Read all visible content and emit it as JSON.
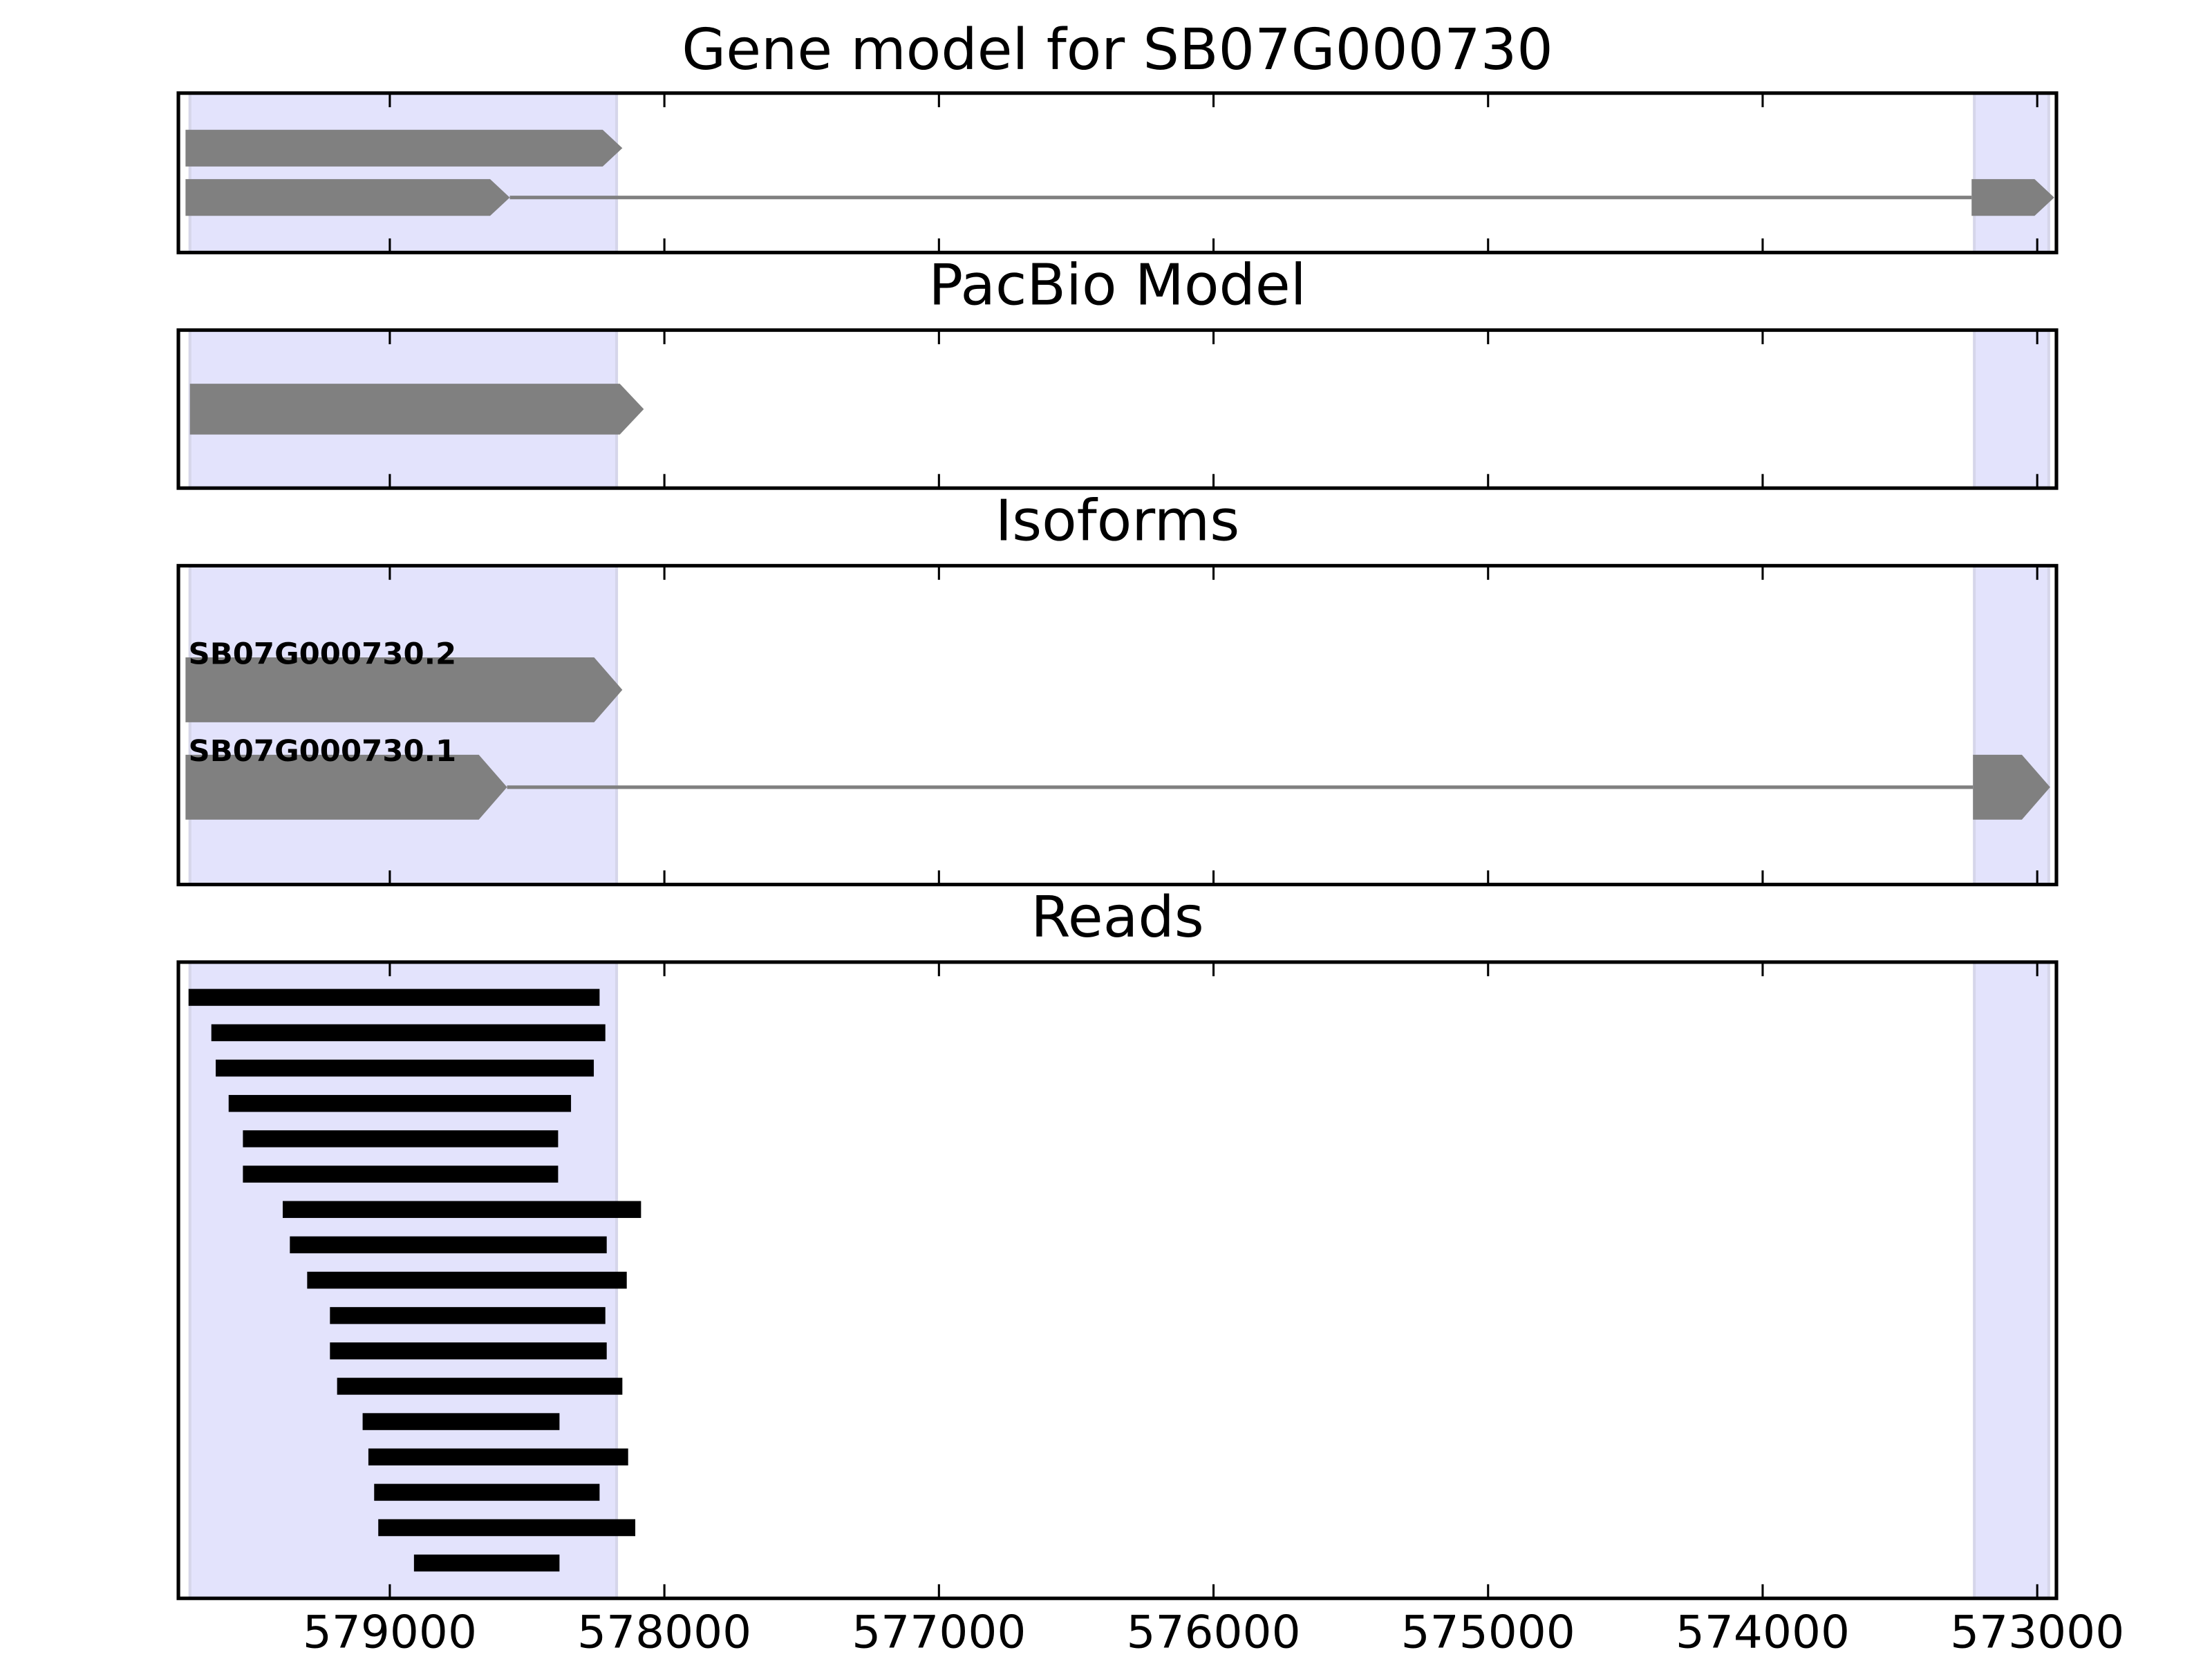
{
  "chart_data": [
    {
      "type": "gene",
      "title": "Gene model for SB07G000730",
      "color": "#808080",
      "highlight_color": "#e3e3fc",
      "xlim": [
        579770,
        572930
      ],
      "xticks": [
        579000,
        578000,
        577000,
        576000,
        575000,
        574000,
        573000
      ],
      "highlights": [
        [
          579728,
          578174
        ],
        [
          573229,
          572958
        ]
      ],
      "tracks": [
        {
          "exons": [
            [
              579744,
              578153
            ]
          ]
        },
        {
          "exons": [
            [
              579744,
              578563
            ],
            [
              573239,
              572938
            ]
          ]
        }
      ]
    },
    {
      "type": "gene",
      "title": "PacBio Model",
      "color": "#808080",
      "highlight_color": "#e3e3fc",
      "xlim": [
        579770,
        572930
      ],
      "xticks": [
        579000,
        578000,
        577000,
        576000,
        575000,
        574000,
        573000
      ],
      "highlights": [
        [
          579728,
          578174
        ],
        [
          573229,
          572958
        ]
      ],
      "tracks": [
        {
          "exons": [
            [
              579728,
              578075
            ]
          ]
        }
      ]
    },
    {
      "type": "gene",
      "title": "Isoforms",
      "color": "#808080",
      "highlight_color": "#e3e3fc",
      "xlim": [
        579770,
        572930
      ],
      "xticks": [
        579000,
        578000,
        577000,
        576000,
        575000,
        574000,
        573000
      ],
      "highlights": [
        [
          579728,
          578174
        ],
        [
          573229,
          572958
        ]
      ],
      "tracks": [
        {
          "label": "SB07G000730.2",
          "exons": [
            [
              579744,
              578153
            ]
          ]
        },
        {
          "label": "SB07G000730.1",
          "exons": [
            [
              579744,
              578573
            ],
            [
              573234,
              572953
            ]
          ]
        }
      ]
    },
    {
      "type": "reads",
      "title": "Reads",
      "color": "#000000",
      "highlight_color": "#e3e3fc",
      "xlim": [
        579770,
        572930
      ],
      "xticks": [
        579000,
        578000,
        577000,
        576000,
        575000,
        574000,
        573000
      ],
      "highlights": [
        [
          579728,
          578174
        ],
        [
          573229,
          572958
        ]
      ],
      "reads": [
        [
          579733,
          578236
        ],
        [
          579650,
          578215
        ],
        [
          579634,
          578257
        ],
        [
          579587,
          578340
        ],
        [
          579535,
          578387
        ],
        [
          579535,
          578387
        ],
        [
          579390,
          578085
        ],
        [
          579364,
          578210
        ],
        [
          579301,
          578137
        ],
        [
          579218,
          578215
        ],
        [
          579218,
          578210
        ],
        [
          579192,
          578153
        ],
        [
          579099,
          578382
        ],
        [
          579078,
          578132
        ],
        [
          579057,
          578236
        ],
        [
          579042,
          578106
        ],
        [
          578912,
          578382
        ]
      ]
    }
  ]
}
